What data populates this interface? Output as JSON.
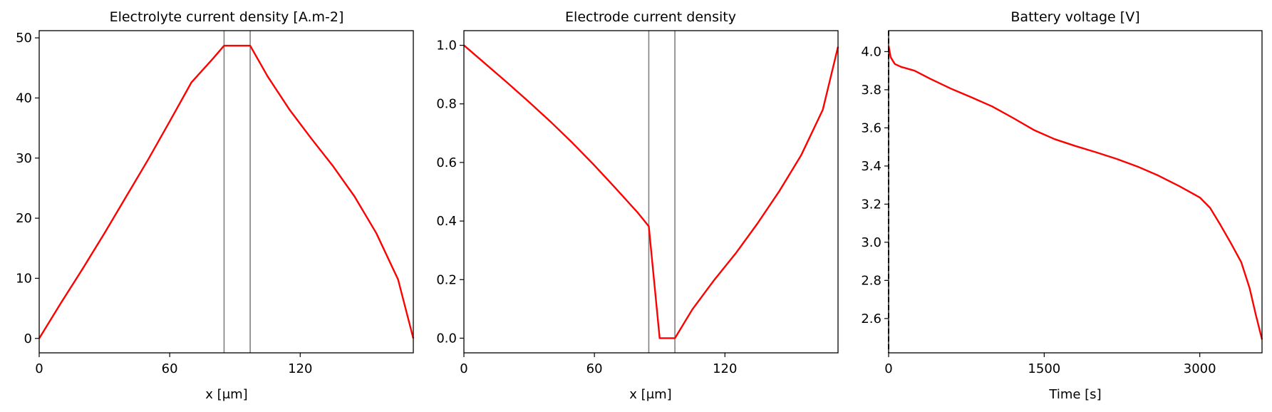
{
  "chart_data": [
    {
      "type": "line",
      "title": "Electrolyte current density [A.m-2]",
      "xlabel": "x [μm]",
      "ylabel": "",
      "xlim": [
        0,
        172
      ],
      "ylim": [
        -2.4,
        51.2
      ],
      "xticks": [
        "0",
        "60",
        "120"
      ],
      "yticks": [
        "0",
        "10",
        "20",
        "30",
        "40",
        "50"
      ],
      "vlines": [
        85,
        97
      ],
      "series": [
        {
          "color": "#ff0000",
          "x": [
            0,
            10,
            20,
            30,
            40,
            50,
            60,
            70,
            80,
            85,
            90,
            97,
            105,
            115,
            125,
            135,
            145,
            155,
            165,
            172
          ],
          "y": [
            0,
            5.9,
            11.6,
            17.5,
            23.6,
            29.7,
            36.1,
            42.6,
            46.6,
            48.7,
            48.7,
            48.7,
            43.6,
            38.1,
            33.3,
            28.7,
            23.6,
            17.5,
            9.8,
            0
          ]
        }
      ]
    },
    {
      "type": "line",
      "title": "Electrode current density",
      "xlabel": "x [μm]",
      "ylabel": "",
      "xlim": [
        0,
        172
      ],
      "ylim": [
        -0.05,
        1.05
      ],
      "xticks": [
        "0",
        "60",
        "120"
      ],
      "yticks": [
        "0.0",
        "0.2",
        "0.4",
        "0.6",
        "0.8",
        "1.0"
      ],
      "vlines": [
        85,
        97
      ],
      "series": [
        {
          "color": "#ff0000",
          "x": [
            0,
            10,
            20,
            30,
            40,
            50,
            60,
            70,
            80,
            85,
            90,
            97,
            105,
            115,
            125,
            135,
            145,
            155,
            165,
            172
          ],
          "y": [
            1.0,
            0.936,
            0.872,
            0.806,
            0.738,
            0.666,
            0.59,
            0.51,
            0.428,
            0.382,
            0.0,
            0.0,
            0.098,
            0.198,
            0.29,
            0.392,
            0.502,
            0.624,
            0.78,
            0.995
          ]
        }
      ]
    },
    {
      "type": "line",
      "title": "Battery voltage [V]",
      "xlabel": "Time [s]",
      "ylabel": "",
      "xlim": [
        0,
        3600
      ],
      "ylim": [
        2.42,
        4.11
      ],
      "xticks": [
        "0",
        "1500",
        "3000"
      ],
      "yticks": [
        "2.6",
        "2.8",
        "3.0",
        "3.2",
        "3.4",
        "3.6",
        "3.8",
        "4.0"
      ],
      "vline_dashed": 0,
      "series": [
        {
          "color": "#ff0000",
          "x": [
            0,
            20,
            60,
            120,
            250,
            400,
            600,
            800,
            1000,
            1200,
            1400,
            1600,
            1800,
            2000,
            2200,
            2400,
            2600,
            2800,
            3000,
            3100,
            3200,
            3300,
            3400,
            3480,
            3540,
            3600
          ],
          "y": [
            4.03,
            3.97,
            3.935,
            3.92,
            3.9,
            3.858,
            3.806,
            3.76,
            3.712,
            3.652,
            3.589,
            3.541,
            3.505,
            3.472,
            3.437,
            3.397,
            3.35,
            3.295,
            3.235,
            3.18,
            3.09,
            2.995,
            2.895,
            2.76,
            2.62,
            2.49
          ]
        }
      ]
    }
  ]
}
